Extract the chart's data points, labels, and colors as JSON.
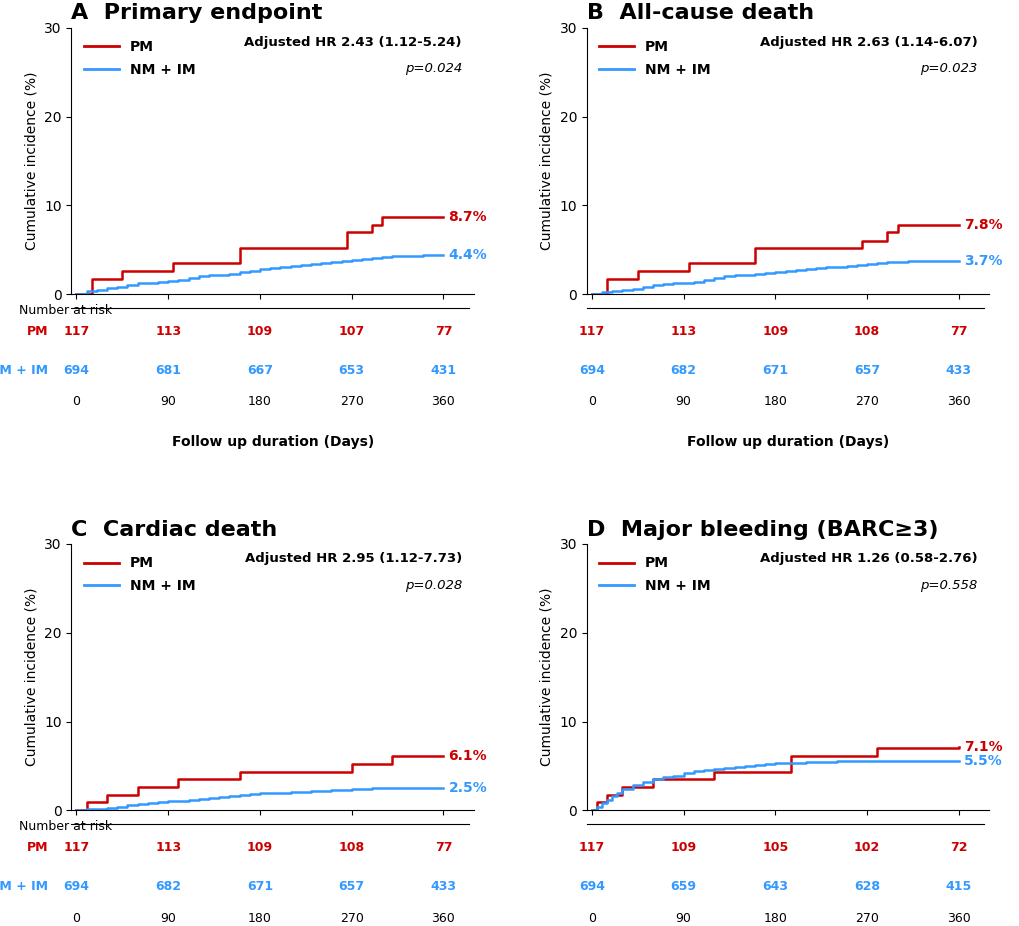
{
  "panels": [
    {
      "label": "A",
      "title": "Primary endpoint",
      "hr_text": "Adjusted HR 2.43 (1.12-5.24)",
      "p_text": "p=0.024",
      "pm_final": 8.7,
      "nm_final": 4.4,
      "pm_color": "#cc0000",
      "nm_color": "#3399ff",
      "ylim": [
        0,
        30
      ],
      "yticks": [
        0,
        10,
        20,
        30
      ],
      "nar_pm": [
        117,
        113,
        109,
        107,
        77
      ],
      "nar_nm": [
        694,
        681,
        667,
        653,
        431
      ],
      "pm_x": [
        0,
        10,
        15,
        30,
        45,
        90,
        95,
        100,
        140,
        160,
        180,
        185,
        220,
        250,
        260,
        265,
        280,
        290,
        300,
        360
      ],
      "pm_y": [
        0,
        0,
        1.7,
        1.7,
        2.6,
        2.6,
        3.5,
        3.5,
        3.5,
        5.2,
        5.2,
        5.2,
        5.2,
        5.2,
        5.2,
        7.0,
        7.0,
        7.8,
        8.7,
        8.7
      ],
      "nm_x": [
        0,
        10,
        20,
        30,
        40,
        50,
        60,
        70,
        80,
        90,
        100,
        110,
        120,
        130,
        140,
        150,
        160,
        170,
        180,
        190,
        200,
        210,
        220,
        230,
        240,
        250,
        260,
        270,
        280,
        290,
        300,
        310,
        320,
        330,
        340,
        350,
        360
      ],
      "nm_y": [
        0,
        0.3,
        0.5,
        0.7,
        0.8,
        1.0,
        1.2,
        1.3,
        1.4,
        1.5,
        1.6,
        1.8,
        2.0,
        2.1,
        2.2,
        2.3,
        2.5,
        2.6,
        2.8,
        2.9,
        3.0,
        3.2,
        3.3,
        3.4,
        3.5,
        3.6,
        3.7,
        3.8,
        4.0,
        4.1,
        4.2,
        4.3,
        4.3,
        4.3,
        4.4,
        4.4,
        4.4
      ]
    },
    {
      "label": "B",
      "title": "All-cause death",
      "hr_text": "Adjusted HR 2.63 (1.14-6.07)",
      "p_text": "p=0.023",
      "pm_final": 7.8,
      "nm_final": 3.7,
      "pm_color": "#cc0000",
      "nm_color": "#3399ff",
      "ylim": [
        0,
        30
      ],
      "yticks": [
        0,
        10,
        20,
        30
      ],
      "nar_pm": [
        117,
        113,
        109,
        108,
        77
      ],
      "nar_nm": [
        694,
        682,
        671,
        657,
        433
      ],
      "pm_x": [
        0,
        10,
        15,
        30,
        45,
        90,
        95,
        100,
        140,
        160,
        180,
        185,
        220,
        250,
        260,
        265,
        280,
        290,
        300,
        360
      ],
      "pm_y": [
        0,
        0,
        1.7,
        1.7,
        2.6,
        2.6,
        3.5,
        3.5,
        3.5,
        5.2,
        5.2,
        5.2,
        5.2,
        5.2,
        5.2,
        6.0,
        6.0,
        7.0,
        7.8,
        7.8
      ],
      "nm_x": [
        0,
        10,
        20,
        30,
        40,
        50,
        60,
        70,
        80,
        90,
        100,
        110,
        120,
        130,
        140,
        150,
        160,
        170,
        180,
        190,
        200,
        210,
        220,
        230,
        240,
        250,
        260,
        270,
        280,
        290,
        300,
        310,
        320,
        330,
        340,
        350,
        360
      ],
      "nm_y": [
        0,
        0.2,
        0.4,
        0.5,
        0.6,
        0.8,
        1.0,
        1.1,
        1.2,
        1.3,
        1.4,
        1.6,
        1.8,
        2.0,
        2.1,
        2.2,
        2.3,
        2.4,
        2.5,
        2.6,
        2.7,
        2.8,
        2.9,
        3.0,
        3.1,
        3.2,
        3.3,
        3.4,
        3.5,
        3.6,
        3.6,
        3.7,
        3.7,
        3.7,
        3.7,
        3.7,
        3.7
      ]
    },
    {
      "label": "C",
      "title": "Cardiac death",
      "hr_text": "Adjusted HR 2.95 (1.12-7.73)",
      "p_text": "p=0.028",
      "pm_final": 6.1,
      "nm_final": 2.5,
      "pm_color": "#cc0000",
      "nm_color": "#3399ff",
      "ylim": [
        0,
        30
      ],
      "yticks": [
        0,
        10,
        20,
        30
      ],
      "nar_pm": [
        117,
        113,
        109,
        108,
        77
      ],
      "nar_nm": [
        694,
        682,
        671,
        657,
        433
      ],
      "pm_x": [
        0,
        10,
        20,
        30,
        60,
        90,
        100,
        130,
        160,
        175,
        200,
        240,
        270,
        285,
        310,
        330,
        360
      ],
      "pm_y": [
        0,
        0.9,
        0.9,
        1.7,
        2.6,
        2.6,
        3.5,
        3.5,
        4.3,
        4.3,
        4.3,
        4.3,
        5.2,
        5.2,
        6.1,
        6.1,
        6.1
      ],
      "nm_x": [
        0,
        10,
        20,
        30,
        40,
        50,
        60,
        70,
        80,
        90,
        100,
        110,
        120,
        130,
        140,
        150,
        160,
        170,
        180,
        190,
        200,
        210,
        220,
        230,
        240,
        250,
        260,
        270,
        280,
        290,
        300,
        310,
        320,
        330,
        340,
        350,
        360
      ],
      "nm_y": [
        0,
        0.1,
        0.2,
        0.3,
        0.4,
        0.6,
        0.7,
        0.8,
        0.9,
        1.0,
        1.1,
        1.2,
        1.3,
        1.4,
        1.5,
        1.6,
        1.7,
        1.8,
        1.9,
        2.0,
        2.0,
        2.1,
        2.1,
        2.2,
        2.2,
        2.3,
        2.3,
        2.4,
        2.4,
        2.5,
        2.5,
        2.5,
        2.5,
        2.5,
        2.5,
        2.5,
        2.5
      ]
    },
    {
      "label": "D",
      "title": "Major bleeding (BARC≥3)",
      "hr_text": "Adjusted HR 1.26 (0.58-2.76)",
      "p_text": "p=0.558",
      "pm_final": 7.1,
      "nm_final": 5.5,
      "pm_color": "#cc0000",
      "nm_color": "#3399ff",
      "ylim": [
        0,
        30
      ],
      "yticks": [
        0,
        10,
        20,
        30
      ],
      "nar_pm": [
        117,
        109,
        105,
        102,
        72
      ],
      "nar_nm": [
        694,
        659,
        643,
        628,
        415
      ],
      "pm_x": [
        0,
        5,
        15,
        30,
        50,
        60,
        90,
        120,
        150,
        180,
        195,
        210,
        240,
        260,
        280,
        300,
        360
      ],
      "pm_y": [
        0,
        0.9,
        1.7,
        2.6,
        2.6,
        3.5,
        3.5,
        4.3,
        4.3,
        4.3,
        6.1,
        6.1,
        6.1,
        6.1,
        7.0,
        7.0,
        7.1
      ],
      "nm_x": [
        0,
        5,
        10,
        15,
        20,
        25,
        30,
        40,
        50,
        60,
        70,
        80,
        90,
        100,
        110,
        120,
        130,
        140,
        150,
        160,
        170,
        180,
        190,
        200,
        210,
        220,
        230,
        240,
        250,
        260,
        270,
        280,
        290,
        300,
        310,
        320,
        330,
        340,
        350,
        360
      ],
      "nm_y": [
        0,
        0.4,
        0.8,
        1.2,
        1.6,
        2.0,
        2.4,
        2.9,
        3.2,
        3.5,
        3.7,
        3.9,
        4.2,
        4.4,
        4.5,
        4.7,
        4.8,
        4.9,
        5.0,
        5.1,
        5.2,
        5.3,
        5.3,
        5.3,
        5.4,
        5.4,
        5.4,
        5.5,
        5.5,
        5.5,
        5.5,
        5.5,
        5.5,
        5.5,
        5.5,
        5.5,
        5.5,
        5.5,
        5.5,
        5.5
      ]
    }
  ],
  "nar_days": [
    0,
    90,
    180,
    270,
    360
  ],
  "pm_color": "#cc0000",
  "nm_color": "#3399ff",
  "background_color": "#ffffff"
}
